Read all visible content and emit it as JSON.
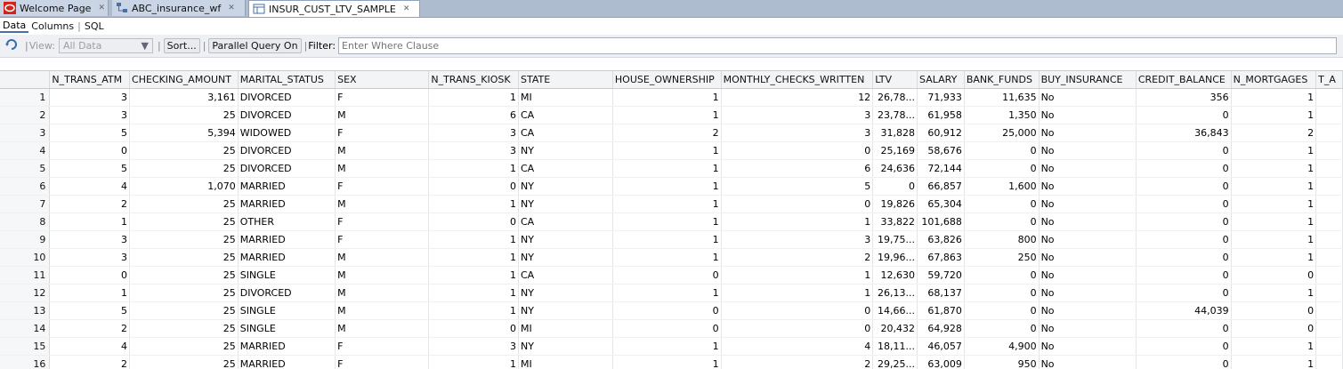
{
  "tabs": [
    {
      "label": "Welcome Page",
      "icon": "oracle-logo-icon"
    },
    {
      "label": "ABC_insurance_wf",
      "icon": "workflow-icon"
    },
    {
      "label": "INSUR_CUST_LTV_SAMPLE",
      "icon": "table-icon"
    }
  ],
  "subtabs": [
    "Data",
    "Columns",
    "SQL"
  ],
  "toolbar": {
    "view_label": "View:",
    "view_value": "All Data",
    "sort_label": "Sort...",
    "parallel_label": "Parallel Query On",
    "filter_label": "Filter:",
    "filter_placeholder": "Enter Where Clause"
  },
  "grid": {
    "columns": [
      "N_TRANS_ATM",
      "CHECKING_AMOUNT",
      "MARITAL_STATUS",
      "SEX",
      "N_TRANS_KIOSK",
      "STATE",
      "HOUSE_OWNERSHIP",
      "MONTHLY_CHECKS_WRITTEN",
      "LTV",
      "SALARY",
      "BANK_FUNDS",
      "BUY_INSURANCE",
      "CREDIT_BALANCE",
      "N_MORTGAGES",
      "T_A"
    ],
    "rows": [
      [
        "1",
        "3",
        "3,161",
        "DIVORCED",
        "F",
        "1",
        "MI",
        "1",
        "12",
        "26,78...",
        "71,933",
        "11,635",
        "No",
        "356",
        "1",
        ""
      ],
      [
        "2",
        "3",
        "25",
        "DIVORCED",
        "M",
        "6",
        "CA",
        "1",
        "3",
        "23,78...",
        "61,958",
        "1,350",
        "No",
        "0",
        "1",
        ""
      ],
      [
        "3",
        "5",
        "5,394",
        "WIDOWED",
        "F",
        "3",
        "CA",
        "2",
        "3",
        "31,828",
        "60,912",
        "25,000",
        "No",
        "36,843",
        "2",
        ""
      ],
      [
        "4",
        "0",
        "25",
        "DIVORCED",
        "M",
        "3",
        "NY",
        "1",
        "0",
        "25,169",
        "58,676",
        "0",
        "No",
        "0",
        "1",
        ""
      ],
      [
        "5",
        "5",
        "25",
        "DIVORCED",
        "M",
        "1",
        "CA",
        "1",
        "6",
        "24,636",
        "72,144",
        "0",
        "No",
        "0",
        "1",
        ""
      ],
      [
        "6",
        "4",
        "1,070",
        "MARRIED",
        "F",
        "0",
        "NY",
        "1",
        "5",
        "0",
        "66,857",
        "1,600",
        "No",
        "0",
        "1",
        ""
      ],
      [
        "7",
        "2",
        "25",
        "MARRIED",
        "M",
        "1",
        "NY",
        "1",
        "0",
        "19,826",
        "65,304",
        "0",
        "No",
        "0",
        "1",
        ""
      ],
      [
        "8",
        "1",
        "25",
        "OTHER",
        "F",
        "0",
        "CA",
        "1",
        "1",
        "33,822",
        "101,688",
        "0",
        "No",
        "0",
        "1",
        ""
      ],
      [
        "9",
        "3",
        "25",
        "MARRIED",
        "F",
        "1",
        "NY",
        "1",
        "3",
        "19,75...",
        "63,826",
        "800",
        "No",
        "0",
        "1",
        ""
      ],
      [
        "10",
        "3",
        "25",
        "MARRIED",
        "M",
        "1",
        "NY",
        "1",
        "2",
        "19,96...",
        "67,863",
        "250",
        "No",
        "0",
        "1",
        ""
      ],
      [
        "11",
        "0",
        "25",
        "SINGLE",
        "M",
        "1",
        "CA",
        "0",
        "1",
        "12,630",
        "59,720",
        "0",
        "No",
        "0",
        "0",
        ""
      ],
      [
        "12",
        "1",
        "25",
        "DIVORCED",
        "M",
        "1",
        "NY",
        "1",
        "1",
        "26,13...",
        "68,137",
        "0",
        "No",
        "0",
        "1",
        ""
      ],
      [
        "13",
        "5",
        "25",
        "SINGLE",
        "M",
        "1",
        "NY",
        "0",
        "0",
        "14,66...",
        "61,870",
        "0",
        "No",
        "44,039",
        "0",
        ""
      ],
      [
        "14",
        "2",
        "25",
        "SINGLE",
        "M",
        "0",
        "MI",
        "0",
        "0",
        "20,432",
        "64,928",
        "0",
        "No",
        "0",
        "0",
        ""
      ],
      [
        "15",
        "4",
        "25",
        "MARRIED",
        "F",
        "3",
        "NY",
        "1",
        "4",
        "18,11...",
        "46,057",
        "4,900",
        "No",
        "0",
        "1",
        ""
      ],
      [
        "16",
        "2",
        "25",
        "MARRIED",
        "F",
        "1",
        "MI",
        "1",
        "2",
        "29,25...",
        "63,009",
        "950",
        "No",
        "0",
        "1",
        ""
      ]
    ]
  },
  "colors": {
    "tabbar": "#aebcd0",
    "accent": "#4a6fa5"
  }
}
